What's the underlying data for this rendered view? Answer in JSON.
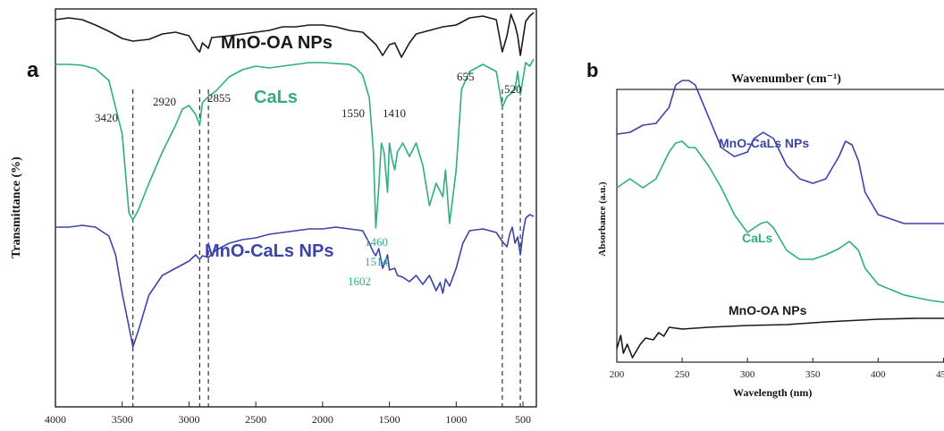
{
  "colors": {
    "mno_oa": "#1a1a1a",
    "cals": "#2fae86",
    "mno_cals": "#3c44a8",
    "dashed": "#333333"
  },
  "chart_data": [
    {
      "panel": "a",
      "type": "line",
      "xlabel": "",
      "ylabel": "Transmittance (%)",
      "xlim": [
        4000,
        400
      ],
      "x_reversed": true,
      "x_ticks": [
        "4000",
        "3500",
        "3000",
        "2500",
        "2000",
        "1500",
        "1000",
        "500"
      ],
      "series": [
        {
          "name": "MnO-OA NPs",
          "color": "#1a1a1a",
          "points": [
            [
              4000,
              12
            ],
            [
              3900,
              10
            ],
            [
              3800,
              12
            ],
            [
              3700,
              18
            ],
            [
              3600,
              25
            ],
            [
              3500,
              33
            ],
            [
              3420,
              36
            ],
            [
              3300,
              34
            ],
            [
              3200,
              28
            ],
            [
              3100,
              26
            ],
            [
              3000,
              30
            ],
            [
              2940,
              45
            ],
            [
              2920,
              48
            ],
            [
              2900,
              38
            ],
            [
              2870,
              42
            ],
            [
              2855,
              44
            ],
            [
              2830,
              32
            ],
            [
              2700,
              30
            ],
            [
              2600,
              28
            ],
            [
              2500,
              26
            ],
            [
              2400,
              24
            ],
            [
              2300,
              20
            ],
            [
              2200,
              20
            ],
            [
              2100,
              18
            ],
            [
              2000,
              18
            ],
            [
              1900,
              20
            ],
            [
              1800,
              24
            ],
            [
              1700,
              26
            ],
            [
              1600,
              40
            ],
            [
              1550,
              52
            ],
            [
              1500,
              40
            ],
            [
              1460,
              38
            ],
            [
              1410,
              54
            ],
            [
              1350,
              38
            ],
            [
              1300,
              28
            ],
            [
              1200,
              24
            ],
            [
              1100,
              20
            ],
            [
              1000,
              18
            ],
            [
              900,
              10
            ],
            [
              800,
              8
            ],
            [
              700,
              12
            ],
            [
              655,
              48
            ],
            [
              620,
              30
            ],
            [
              590,
              6
            ],
            [
              560,
              18
            ],
            [
              540,
              30
            ],
            [
              520,
              52
            ],
            [
              480,
              14
            ],
            [
              450,
              8
            ],
            [
              420,
              4
            ]
          ]
        },
        {
          "name": "CaLs",
          "color": "#2fae86",
          "points": [
            [
              4000,
              62
            ],
            [
              3900,
              62
            ],
            [
              3800,
              63
            ],
            [
              3700,
              67
            ],
            [
              3600,
              80
            ],
            [
              3500,
              140
            ],
            [
              3450,
              228
            ],
            [
              3420,
              236
            ],
            [
              3380,
              225
            ],
            [
              3300,
              195
            ],
            [
              3200,
              160
            ],
            [
              3100,
              130
            ],
            [
              3050,
              112
            ],
            [
              3000,
              108
            ],
            [
              2950,
              118
            ],
            [
              2920,
              130
            ],
            [
              2900,
              105
            ],
            [
              2855,
              98
            ],
            [
              2800,
              92
            ],
            [
              2700,
              76
            ],
            [
              2600,
              68
            ],
            [
              2500,
              64
            ],
            [
              2400,
              66
            ],
            [
              2300,
              64
            ],
            [
              2200,
              62
            ],
            [
              2100,
              60
            ],
            [
              2000,
              60
            ],
            [
              1900,
              61
            ],
            [
              1800,
              62
            ],
            [
              1750,
              66
            ],
            [
              1700,
              74
            ],
            [
              1650,
              100
            ],
            [
              1620,
              160
            ],
            [
              1602,
              245
            ],
            [
              1580,
              200
            ],
            [
              1560,
              150
            ],
            [
              1540,
              160
            ],
            [
              1514,
              205
            ],
            [
              1500,
              150
            ],
            [
              1480,
              168
            ],
            [
              1460,
              180
            ],
            [
              1440,
              160
            ],
            [
              1400,
              150
            ],
            [
              1350,
              165
            ],
            [
              1300,
              150
            ],
            [
              1250,
              175
            ],
            [
              1200,
              220
            ],
            [
              1150,
              195
            ],
            [
              1100,
              210
            ],
            [
              1080,
              180
            ],
            [
              1050,
              240
            ],
            [
              1000,
              180
            ],
            [
              960,
              90
            ],
            [
              900,
              70
            ],
            [
              800,
              62
            ],
            [
              700,
              70
            ],
            [
              655,
              110
            ],
            [
              620,
              98
            ],
            [
              600,
              96
            ],
            [
              560,
              90
            ],
            [
              540,
              70
            ],
            [
              520,
              96
            ],
            [
              480,
              60
            ],
            [
              450,
              64
            ],
            [
              420,
              56
            ]
          ]
        },
        {
          "name": "MnO-CaLs NPs",
          "color": "#3c44a8",
          "points": [
            [
              4000,
              244
            ],
            [
              3900,
              244
            ],
            [
              3800,
              242
            ],
            [
              3700,
              244
            ],
            [
              3600,
              254
            ],
            [
              3550,
              275
            ],
            [
              3500,
              318
            ],
            [
              3450,
              355
            ],
            [
              3420,
              378
            ],
            [
              3380,
              360
            ],
            [
              3300,
              320
            ],
            [
              3200,
              298
            ],
            [
              3100,
              290
            ],
            [
              3000,
              282
            ],
            [
              2950,
              275
            ],
            [
              2920,
              280
            ],
            [
              2900,
              276
            ],
            [
              2855,
              278
            ],
            [
              2800,
              270
            ],
            [
              2700,
              262
            ],
            [
              2600,
              258
            ],
            [
              2500,
              256
            ],
            [
              2400,
              252
            ],
            [
              2300,
              250
            ],
            [
              2200,
              248
            ],
            [
              2100,
              246
            ],
            [
              2000,
              246
            ],
            [
              1900,
              244
            ],
            [
              1800,
              246
            ],
            [
              1700,
              248
            ],
            [
              1650,
              262
            ],
            [
              1620,
              272
            ],
            [
              1602,
              276
            ],
            [
              1580,
              268
            ],
            [
              1550,
              290
            ],
            [
              1514,
              275
            ],
            [
              1500,
              292
            ],
            [
              1460,
              290
            ],
            [
              1440,
              298
            ],
            [
              1400,
              300
            ],
            [
              1350,
              305
            ],
            [
              1300,
              298
            ],
            [
              1250,
              308
            ],
            [
              1200,
              298
            ],
            [
              1150,
              315
            ],
            [
              1120,
              306
            ],
            [
              1100,
              318
            ],
            [
              1080,
              302
            ],
            [
              1050,
              310
            ],
            [
              1000,
              290
            ],
            [
              950,
              262
            ],
            [
              900,
              248
            ],
            [
              800,
              246
            ],
            [
              700,
              250
            ],
            [
              655,
              260
            ],
            [
              620,
              266
            ],
            [
              600,
              252
            ],
            [
              580,
              244
            ],
            [
              560,
              262
            ],
            [
              540,
              255
            ],
            [
              520,
              275
            ],
            [
              500,
              250
            ],
            [
              480,
              234
            ],
            [
              450,
              230
            ],
            [
              420,
              232
            ]
          ]
        }
      ],
      "series_labels": [
        "MnO-OA NPs",
        "CaLs",
        "MnO-CaLs NPs"
      ],
      "peak_labels": {
        "black": [
          "3420",
          "2920",
          "2855",
          "1550",
          "1410",
          "655",
          "520"
        ],
        "green": [
          "1460",
          "1514",
          "1602"
        ]
      },
      "dashed_lines_at": [
        3420,
        2920,
        2855,
        655,
        520
      ]
    },
    {
      "panel": "b",
      "type": "line",
      "title": "Wavenumber (cm⁻¹)",
      "xlabel": "Wavelength (nm)",
      "ylabel": "Absorbance (a.u.)",
      "xlim": [
        200,
        460
      ],
      "x_ticks": [
        "200",
        "250",
        "300",
        "350",
        "400",
        "450"
      ],
      "series": [
        {
          "name": "MnO-CaLs NPs",
          "color": "#3c44a8",
          "points": [
            [
              200,
              150
            ],
            [
              210,
              148
            ],
            [
              220,
              140
            ],
            [
              230,
              138
            ],
            [
              240,
              120
            ],
            [
              245,
              95
            ],
            [
              250,
              90
            ],
            [
              255,
              90
            ],
            [
              260,
              95
            ],
            [
              270,
              130
            ],
            [
              280,
              165
            ],
            [
              290,
              175
            ],
            [
              300,
              170
            ],
            [
              305,
              155
            ],
            [
              312,
              148
            ],
            [
              320,
              155
            ],
            [
              330,
              185
            ],
            [
              340,
              200
            ],
            [
              350,
              205
            ],
            [
              360,
              200
            ],
            [
              370,
              175
            ],
            [
              375,
              158
            ],
            [
              380,
              162
            ],
            [
              385,
              180
            ],
            [
              390,
              215
            ],
            [
              400,
              240
            ],
            [
              420,
              250
            ],
            [
              440,
              250
            ],
            [
              460,
              250
            ]
          ]
        },
        {
          "name": "CaLs",
          "color": "#2fae86",
          "points": [
            [
              200,
              210
            ],
            [
              210,
              200
            ],
            [
              220,
              210
            ],
            [
              230,
              200
            ],
            [
              240,
              170
            ],
            [
              245,
              160
            ],
            [
              250,
              158
            ],
            [
              255,
              165
            ],
            [
              260,
              165
            ],
            [
              270,
              185
            ],
            [
              280,
              210
            ],
            [
              290,
              240
            ],
            [
              300,
              260
            ],
            [
              305,
              255
            ],
            [
              310,
              250
            ],
            [
              315,
              248
            ],
            [
              320,
              255
            ],
            [
              330,
              280
            ],
            [
              340,
              290
            ],
            [
              350,
              290
            ],
            [
              360,
              285
            ],
            [
              370,
              278
            ],
            [
              378,
              270
            ],
            [
              385,
              280
            ],
            [
              390,
              300
            ],
            [
              400,
              318
            ],
            [
              420,
              330
            ],
            [
              440,
              336
            ],
            [
              460,
              340
            ]
          ]
        },
        {
          "name": "MnO-OA NPs",
          "color": "#1a1a1a",
          "points": [
            [
              200,
              390
            ],
            [
              203,
              375
            ],
            [
              205,
              395
            ],
            [
              208,
              385
            ],
            [
              212,
              400
            ],
            [
              218,
              385
            ],
            [
              222,
              378
            ],
            [
              228,
              380
            ],
            [
              232,
              372
            ],
            [
              236,
              376
            ],
            [
              240,
              366
            ],
            [
              250,
              368
            ],
            [
              270,
              366
            ],
            [
              300,
              364
            ],
            [
              330,
              363
            ],
            [
              360,
              360
            ],
            [
              400,
              357
            ],
            [
              430,
              356
            ],
            [
              460,
              356
            ]
          ]
        }
      ],
      "series_labels": [
        "MnO-CaLs NPs",
        "CaLs",
        "MnO-OA NPs"
      ]
    }
  ],
  "panels": {
    "a": {
      "letter": "a"
    },
    "b": {
      "letter": "b"
    }
  }
}
